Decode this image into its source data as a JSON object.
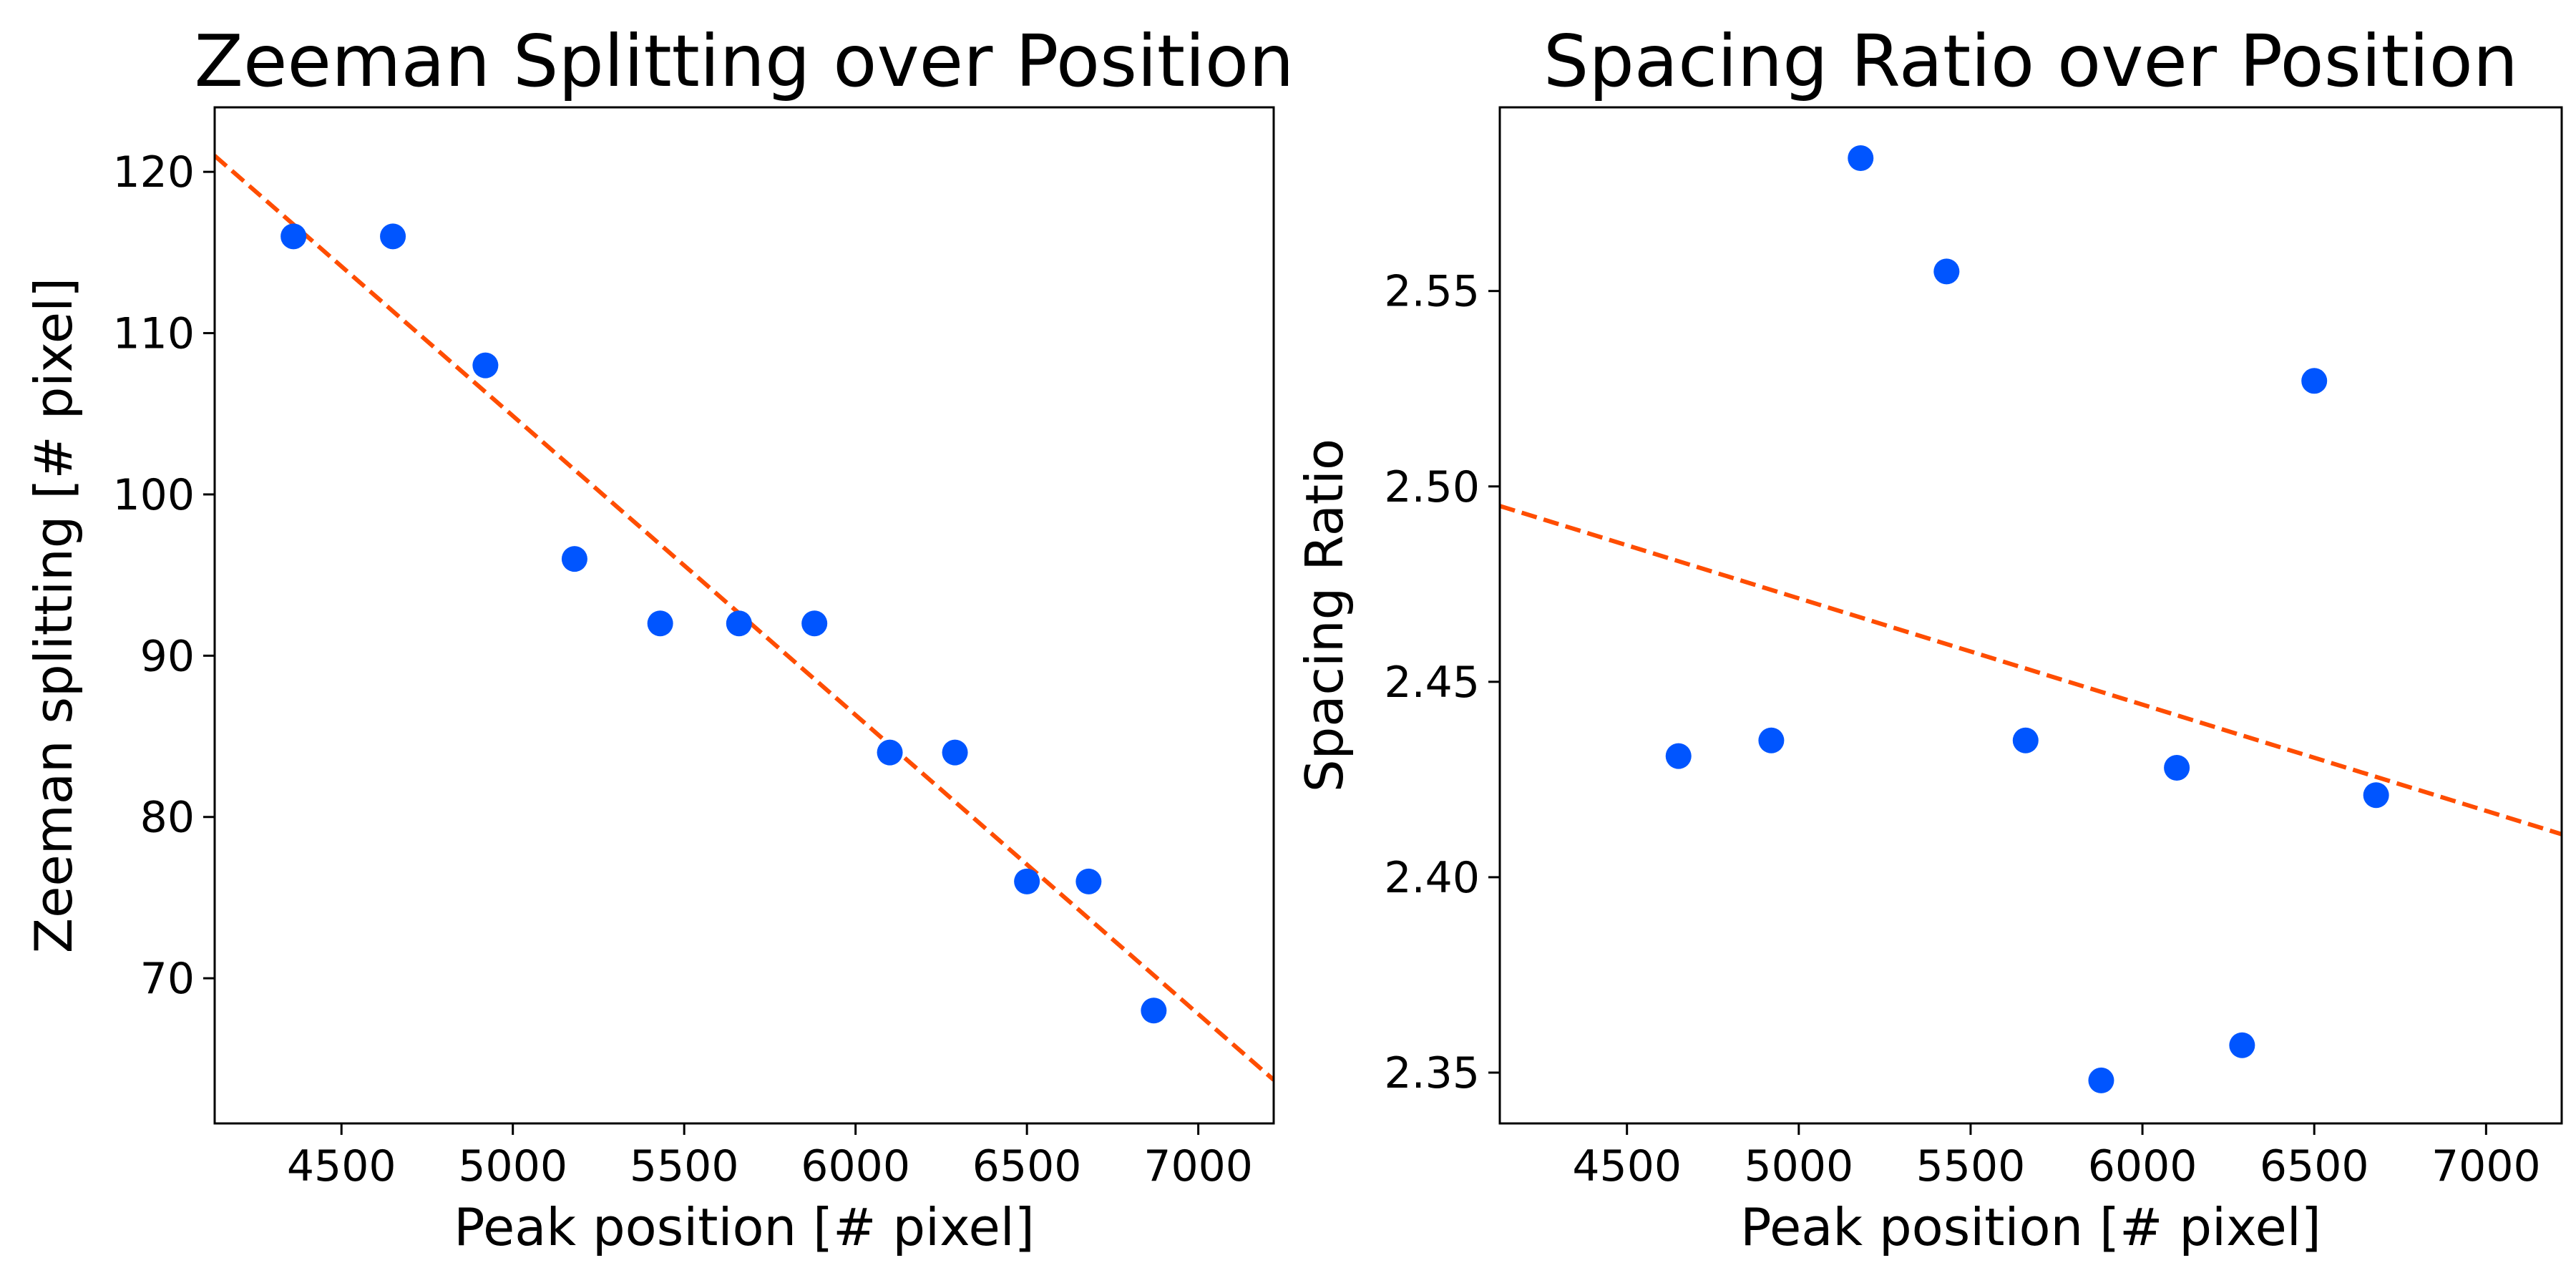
{
  "chart_data": [
    {
      "type": "scatter",
      "title": "Zeeman Splitting over Position",
      "xlabel": "Peak position [# pixel]",
      "ylabel": "Zeeman splitting [# pixel]",
      "xlim": [
        4130,
        7220
      ],
      "ylim": [
        61,
        124
      ],
      "xticks": [
        4500,
        5000,
        5500,
        6000,
        6500,
        7000
      ],
      "yticks": [
        70,
        80,
        90,
        100,
        110,
        120
      ],
      "ytick_decimals": 0,
      "grid": false,
      "series": [
        {
          "kind": "points",
          "color": "#0055ff",
          "x": [
            4360,
            4650,
            4920,
            5180,
            5430,
            5660,
            5880,
            6100,
            6290,
            6500,
            6680,
            6870
          ],
          "y": [
            116,
            116,
            108,
            96,
            92,
            92,
            92,
            84,
            84,
            76,
            76,
            68
          ]
        },
        {
          "kind": "fit",
          "color": "#ff4d00",
          "style": "dashed",
          "x": [
            4130,
            7220
          ],
          "y": [
            121.0,
            63.7
          ]
        }
      ]
    },
    {
      "type": "scatter",
      "title": "Spacing Ratio over Position",
      "xlabel": "Peak position [# pixel]",
      "ylabel": "Spacing Ratio",
      "xlim": [
        4130,
        7220
      ],
      "ylim": [
        2.337,
        2.597
      ],
      "xticks": [
        4500,
        5000,
        5500,
        6000,
        6500,
        7000
      ],
      "yticks": [
        2.35,
        2.4,
        2.45,
        2.5,
        2.55
      ],
      "ytick_decimals": 2,
      "grid": false,
      "series": [
        {
          "kind": "points",
          "color": "#0055ff",
          "x": [
            4650,
            4920,
            5180,
            5430,
            5660,
            5880,
            6100,
            6290,
            6500,
            6680
          ],
          "y": [
            2.431,
            2.435,
            2.584,
            2.555,
            2.435,
            2.348,
            2.428,
            2.357,
            2.527,
            2.421
          ]
        },
        {
          "kind": "fit",
          "color": "#ff4d00",
          "style": "dashed",
          "x": [
            4130,
            7220
          ],
          "y": [
            2.495,
            2.411
          ]
        }
      ]
    }
  ]
}
